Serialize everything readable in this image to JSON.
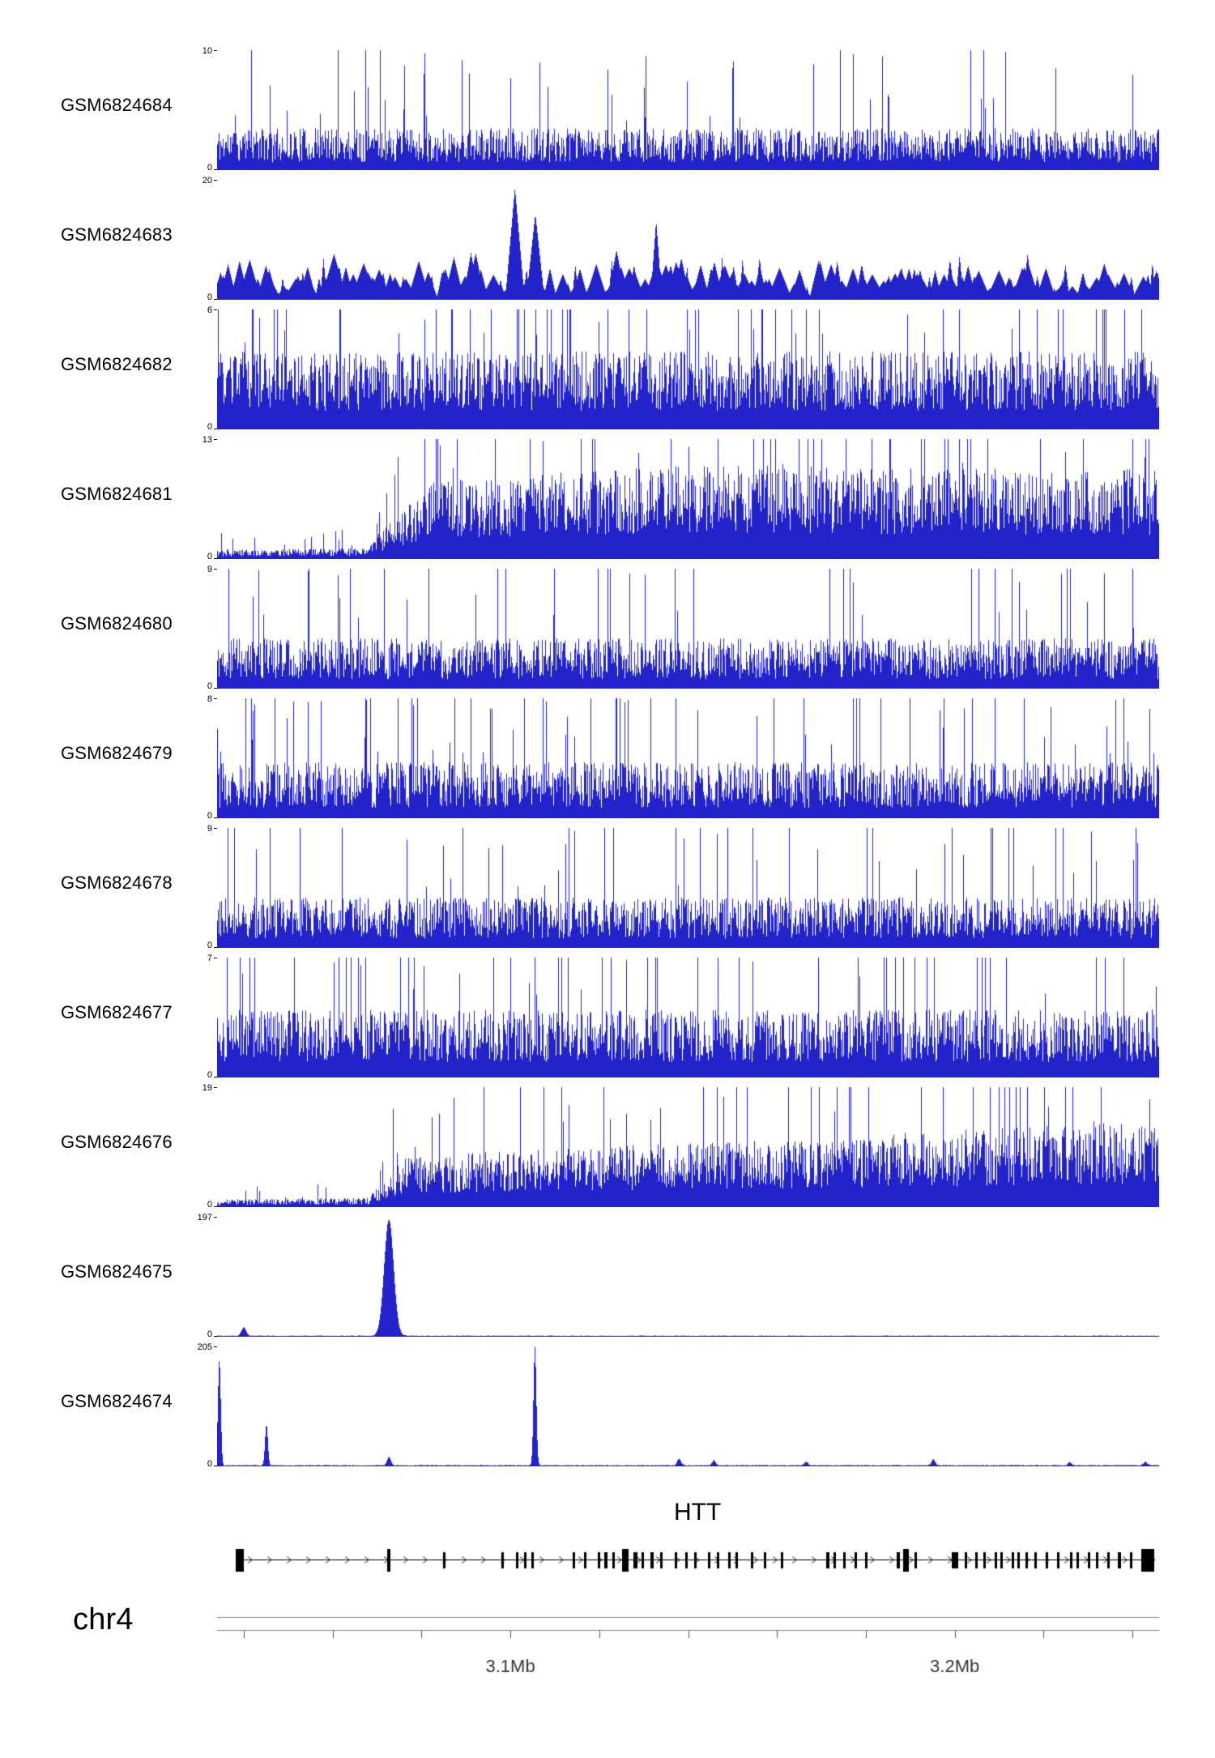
{
  "chart_data": {
    "type": "area",
    "chromosome": "chr4",
    "track_color": "#2323cc",
    "tracks": [
      {
        "label": "GSM6824684",
        "ymin": 0,
        "ymax": 10,
        "style": "noise",
        "seed": 11,
        "envelope": [
          [
            0,
            0.3
          ],
          [
            1,
            0.3
          ]
        ],
        "fill": 0.22,
        "spike": 0.04
      },
      {
        "label": "GSM6824683",
        "ymin": 0,
        "ymax": 20,
        "style": "tri",
        "seed": 22,
        "envelope": [
          [
            0,
            0.3
          ],
          [
            1,
            0.3
          ]
        ]
      },
      {
        "label": "GSM6824682",
        "ymin": 0,
        "ymax": 6,
        "style": "noise",
        "seed": 33,
        "envelope": [
          [
            0,
            0.52
          ],
          [
            1,
            0.52
          ]
        ],
        "fill": 0.3,
        "spike": 0.05
      },
      {
        "label": "GSM6824681",
        "ymin": 0,
        "ymax": 13,
        "style": "noise",
        "seed": 44,
        "envelope": [
          [
            0,
            0.06
          ],
          [
            0.16,
            0.07
          ],
          [
            0.19,
            0.28
          ],
          [
            0.23,
            0.5
          ],
          [
            0.35,
            0.55
          ],
          [
            0.55,
            0.62
          ],
          [
            0.75,
            0.58
          ],
          [
            1,
            0.58
          ]
        ],
        "fill": 0.35,
        "spike": 0.05
      },
      {
        "label": "GSM6824680",
        "ymin": 0,
        "ymax": 9,
        "style": "noise",
        "seed": 55,
        "envelope": [
          [
            0,
            0.36
          ],
          [
            1,
            0.36
          ]
        ],
        "fill": 0.22,
        "spike": 0.04
      },
      {
        "label": "GSM6824679",
        "ymin": 0,
        "ymax": 8,
        "style": "noise",
        "seed": 66,
        "envelope": [
          [
            0,
            0.4
          ],
          [
            1,
            0.4
          ]
        ],
        "fill": 0.22,
        "spike": 0.045
      },
      {
        "label": "GSM6824678",
        "ymin": 0,
        "ymax": 9,
        "style": "noise",
        "seed": 77,
        "envelope": [
          [
            0,
            0.36
          ],
          [
            1,
            0.36
          ]
        ],
        "fill": 0.22,
        "spike": 0.04
      },
      {
        "label": "GSM6824677",
        "ymin": 0,
        "ymax": 7,
        "style": "noise",
        "seed": 88,
        "envelope": [
          [
            0,
            0.46
          ],
          [
            1,
            0.46
          ]
        ],
        "fill": 0.28,
        "spike": 0.05
      },
      {
        "label": "GSM6824676",
        "ymin": 0,
        "ymax": 19,
        "style": "noise",
        "seed": 99,
        "envelope": [
          [
            0,
            0.05
          ],
          [
            0.16,
            0.06
          ],
          [
            0.2,
            0.32
          ],
          [
            0.35,
            0.38
          ],
          [
            0.55,
            0.42
          ],
          [
            0.8,
            0.5
          ],
          [
            0.95,
            0.56
          ],
          [
            1,
            0.5
          ]
        ],
        "fill": 0.35,
        "spike": 0.05
      },
      {
        "label": "GSM6824675",
        "ymin": 0,
        "ymax": 197,
        "style": "peaks",
        "seed": 111,
        "baseline": 0.007,
        "peaks": [
          [
            0.028,
            0.07,
            0.0025
          ],
          [
            0.182,
            0.97,
            0.005
          ]
        ]
      },
      {
        "label": "GSM6824674",
        "ymin": 0,
        "ymax": 205,
        "style": "peaks",
        "seed": 222,
        "baseline": 0.008,
        "peaks": [
          [
            0.002,
            0.88,
            0.0015
          ],
          [
            0.052,
            0.34,
            0.0015
          ],
          [
            0.182,
            0.07,
            0.002
          ],
          [
            0.337,
            0.99,
            0.0015
          ],
          [
            0.49,
            0.055,
            0.002
          ],
          [
            0.527,
            0.04,
            0.002
          ],
          [
            0.625,
            0.028,
            0.002
          ],
          [
            0.76,
            0.05,
            0.002
          ],
          [
            0.905,
            0.025,
            0.002
          ],
          [
            0.985,
            0.03,
            0.002
          ]
        ]
      }
    ],
    "gene": {
      "name": "HTT",
      "strand": "forward",
      "span": [
        0.02,
        0.996
      ],
      "exons": [
        [
          0.024,
          10,
          1
        ],
        [
          0.182,
          4,
          1
        ],
        [
          0.241,
          3,
          0
        ],
        [
          0.303,
          3,
          0
        ],
        [
          0.319,
          3,
          0
        ],
        [
          0.327,
          3,
          0
        ],
        [
          0.335,
          3,
          0
        ],
        [
          0.379,
          3,
          0
        ],
        [
          0.391,
          3,
          0
        ],
        [
          0.405,
          3,
          0
        ],
        [
          0.413,
          4,
          0
        ],
        [
          0.421,
          3,
          0
        ],
        [
          0.433,
          8,
          1
        ],
        [
          0.444,
          5,
          0
        ],
        [
          0.452,
          3,
          0
        ],
        [
          0.462,
          4,
          0
        ],
        [
          0.472,
          3,
          0
        ],
        [
          0.487,
          3,
          0
        ],
        [
          0.498,
          3,
          0
        ],
        [
          0.508,
          3,
          0
        ],
        [
          0.522,
          3,
          0
        ],
        [
          0.532,
          3,
          0
        ],
        [
          0.544,
          3,
          0
        ],
        [
          0.552,
          3,
          0
        ],
        [
          0.568,
          3,
          0
        ],
        [
          0.582,
          3,
          0
        ],
        [
          0.6,
          3,
          0
        ],
        [
          0.648,
          4,
          0
        ],
        [
          0.656,
          3,
          0
        ],
        [
          0.666,
          3,
          0
        ],
        [
          0.678,
          3,
          0
        ],
        [
          0.689,
          3,
          0
        ],
        [
          0.723,
          4,
          0
        ],
        [
          0.731,
          7,
          1
        ],
        [
          0.742,
          3,
          0
        ],
        [
          0.783,
          8,
          0
        ],
        [
          0.795,
          3,
          0
        ],
        [
          0.806,
          3,
          0
        ],
        [
          0.815,
          3,
          0
        ],
        [
          0.827,
          3,
          0
        ],
        [
          0.833,
          3,
          0
        ],
        [
          0.845,
          3,
          0
        ],
        [
          0.851,
          3,
          0
        ],
        [
          0.859,
          3,
          0
        ],
        [
          0.869,
          3,
          0
        ],
        [
          0.881,
          3,
          0
        ],
        [
          0.893,
          3,
          0
        ],
        [
          0.907,
          3,
          0
        ],
        [
          0.914,
          3,
          0
        ],
        [
          0.926,
          3,
          0
        ],
        [
          0.934,
          3,
          0
        ],
        [
          0.946,
          3,
          0
        ],
        [
          0.958,
          4,
          0
        ],
        [
          0.97,
          3,
          0
        ],
        [
          0.988,
          16,
          1
        ]
      ]
    },
    "axis": {
      "start_mb": 3.034,
      "end_mb": 3.246,
      "tick_start_mb": 3.04,
      "tick_interval_mb": 0.02,
      "labels": [
        {
          "mb": 3.1,
          "text": "3.1Mb"
        },
        {
          "mb": 3.2,
          "text": "3.2Mb"
        }
      ]
    }
  }
}
